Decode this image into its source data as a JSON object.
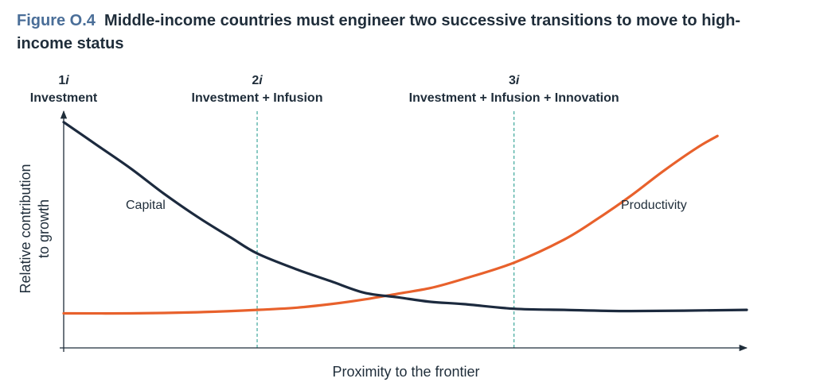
{
  "figure": {
    "number": "Figure O.4",
    "title": "Middle-income countries must engineer two successive transitions to move to high-income status"
  },
  "chart_data": {
    "type": "line",
    "xlabel": "Proximity to the frontier",
    "ylabel_line1": "Relative contribution",
    "ylabel_line2": "to growth",
    "xlim": [
      0,
      1
    ],
    "ylim": [
      0,
      1
    ],
    "ticks": "none",
    "grid": false,
    "legend": "none",
    "phases": [
      {
        "num": "1",
        "suffix": "i",
        "label": "Investment",
        "x": 0.0
      },
      {
        "num": "2",
        "suffix": "i",
        "label": "Investment + Infusion",
        "x": 0.29
      },
      {
        "num": "3",
        "suffix": "i",
        "label": "Investment + Infusion + Innovation",
        "x": 0.675
      }
    ],
    "series": [
      {
        "name": "Capital",
        "color": "#1c2a3e",
        "x": [
          0.0,
          0.05,
          0.1,
          0.15,
          0.2,
          0.25,
          0.29,
          0.35,
          0.4,
          0.45,
          0.5,
          0.55,
          0.6,
          0.675,
          0.75,
          0.85,
          1.0
        ],
        "y": [
          0.98,
          0.88,
          0.78,
          0.67,
          0.57,
          0.48,
          0.41,
          0.34,
          0.29,
          0.24,
          0.22,
          0.2,
          0.19,
          0.17,
          0.165,
          0.16,
          0.165
        ]
      },
      {
        "name": "Productivity",
        "color": "#e8612c",
        "x": [
          0.0,
          0.1,
          0.2,
          0.29,
          0.35,
          0.4,
          0.45,
          0.5,
          0.55,
          0.6,
          0.675,
          0.75,
          0.8,
          0.85,
          0.9,
          0.95,
          0.98
        ],
        "y": [
          0.15,
          0.15,
          0.155,
          0.165,
          0.175,
          0.19,
          0.21,
          0.235,
          0.26,
          0.3,
          0.37,
          0.47,
          0.56,
          0.66,
          0.77,
          0.87,
          0.92
        ]
      }
    ],
    "annotations": [
      {
        "text": "Capital",
        "series": "Capital"
      },
      {
        "text": "Productivity",
        "series": "Productivity"
      }
    ],
    "phase_line_color": "#3fa89c",
    "axis_color": "#1f2d3a"
  }
}
